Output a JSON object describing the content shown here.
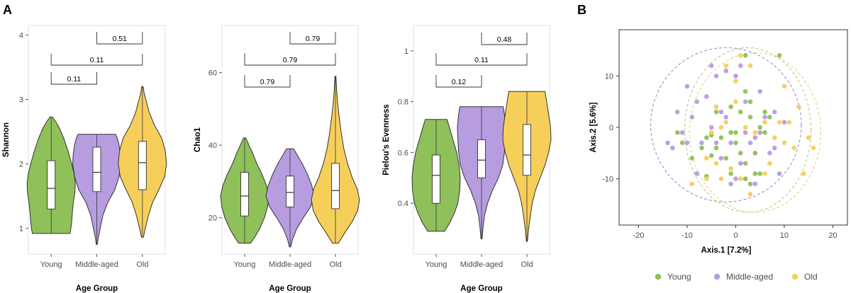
{
  "panel_labels": [
    "A",
    "B"
  ],
  "colors": {
    "young": "#8fc05a",
    "middle": "#b79ce0",
    "old": "#f6cf5a",
    "ellipse_purple": "#9b8fce",
    "ellipse_green": "#b8c98a",
    "ellipse_yellow": "#eed07a"
  },
  "chart_data": [
    {
      "type": "violin",
      "categories": [
        "Young",
        "Middle-aged",
        "Old"
      ],
      "xlabel": "Age Group",
      "ylabel": "Shannon",
      "ylim": [
        0.6,
        4.15
      ],
      "yticks": [
        1,
        2,
        3,
        4
      ],
      "violins": [
        {
          "name": "Young",
          "min": 0.92,
          "max": 2.73,
          "q1": 1.3,
          "median": 1.62,
          "q3": 2.05,
          "density": [
            [
              0.92,
              0.78
            ],
            [
              1.0,
              0.82
            ],
            [
              1.1,
              0.85
            ],
            [
              1.25,
              0.88
            ],
            [
              1.4,
              0.92
            ],
            [
              1.55,
              0.98
            ],
            [
              1.7,
              1.0
            ],
            [
              1.85,
              0.95
            ],
            [
              2.0,
              0.85
            ],
            [
              2.2,
              0.7
            ],
            [
              2.4,
              0.52
            ],
            [
              2.55,
              0.35
            ],
            [
              2.65,
              0.2
            ],
            [
              2.73,
              0.05
            ]
          ]
        },
        {
          "name": "Middle-aged",
          "min": 0.75,
          "max": 2.46,
          "q1": 1.57,
          "median": 1.87,
          "q3": 2.26,
          "density": [
            [
              0.75,
              0.02
            ],
            [
              0.85,
              0.06
            ],
            [
              1.0,
              0.14
            ],
            [
              1.2,
              0.25
            ],
            [
              1.4,
              0.45
            ],
            [
              1.6,
              0.75
            ],
            [
              1.8,
              0.92
            ],
            [
              2.0,
              1.0
            ],
            [
              2.15,
              0.98
            ],
            [
              2.3,
              0.92
            ],
            [
              2.4,
              0.85
            ],
            [
              2.46,
              0.78
            ]
          ]
        },
        {
          "name": "Old",
          "min": 0.86,
          "max": 3.2,
          "q1": 1.6,
          "median": 2.02,
          "q3": 2.35,
          "density": [
            [
              0.86,
              0.04
            ],
            [
              1.0,
              0.12
            ],
            [
              1.2,
              0.25
            ],
            [
              1.4,
              0.42
            ],
            [
              1.6,
              0.68
            ],
            [
              1.8,
              0.92
            ],
            [
              2.0,
              1.0
            ],
            [
              2.2,
              0.95
            ],
            [
              2.4,
              0.8
            ],
            [
              2.6,
              0.5
            ],
            [
              2.8,
              0.28
            ],
            [
              3.0,
              0.14
            ],
            [
              3.1,
              0.07
            ],
            [
              3.2,
              0.03
            ]
          ]
        }
      ],
      "comparisons": [
        {
          "from": "Young",
          "to": "Middle-aged",
          "p": "0.11"
        },
        {
          "from": "Young",
          "to": "Old",
          "p": "0.11"
        },
        {
          "from": "Middle-aged",
          "to": "Old",
          "p": "0.51"
        }
      ]
    },
    {
      "type": "violin",
      "categories": [
        "Young",
        "Middle-aged",
        "Old"
      ],
      "xlabel": "Age Group",
      "ylabel": "Chao1",
      "ylim": [
        10,
        73
      ],
      "yticks": [
        20,
        40,
        60
      ],
      "violins": [
        {
          "name": "Young",
          "min": 13,
          "max": 42,
          "q1": 20.5,
          "median": 26,
          "q3": 32.5,
          "density": [
            [
              13,
              0.25
            ],
            [
              15,
              0.45
            ],
            [
              17,
              0.62
            ],
            [
              20,
              0.82
            ],
            [
              23,
              0.95
            ],
            [
              26,
              1.0
            ],
            [
              29,
              0.9
            ],
            [
              32,
              0.72
            ],
            [
              35,
              0.5
            ],
            [
              38,
              0.32
            ],
            [
              40,
              0.18
            ],
            [
              42,
              0.05
            ]
          ]
        },
        {
          "name": "Middle-aged",
          "min": 12,
          "max": 39,
          "q1": 23,
          "median": 27,
          "q3": 31.5,
          "density": [
            [
              12,
              0.03
            ],
            [
              14,
              0.1
            ],
            [
              17,
              0.28
            ],
            [
              20,
              0.55
            ],
            [
              23,
              0.85
            ],
            [
              26,
              1.0
            ],
            [
              29,
              0.9
            ],
            [
              32,
              0.72
            ],
            [
              35,
              0.5
            ],
            [
              37,
              0.32
            ],
            [
              39,
              0.15
            ]
          ]
        },
        {
          "name": "Old",
          "min": 13,
          "max": 59,
          "q1": 22.5,
          "median": 27.5,
          "q3": 35,
          "density": [
            [
              13,
              0.12
            ],
            [
              16,
              0.4
            ],
            [
              19,
              0.7
            ],
            [
              22,
              0.92
            ],
            [
              25,
              1.0
            ],
            [
              28,
              0.9
            ],
            [
              31,
              0.7
            ],
            [
              35,
              0.5
            ],
            [
              39,
              0.35
            ],
            [
              43,
              0.25
            ],
            [
              47,
              0.17
            ],
            [
              51,
              0.1
            ],
            [
              55,
              0.05
            ],
            [
              59,
              0.02
            ]
          ]
        }
      ],
      "comparisons": [
        {
          "from": "Young",
          "to": "Middle-aged",
          "p": "0.79"
        },
        {
          "from": "Young",
          "to": "Old",
          "p": "0.79"
        },
        {
          "from": "Middle-aged",
          "to": "Old",
          "p": "0.79"
        }
      ]
    },
    {
      "type": "violin",
      "categories": [
        "Young",
        "Middle-aged",
        "Old"
      ],
      "xlabel": "Age Group",
      "ylabel": "Pielou's Evenness",
      "ylim": [
        0.2,
        1.1
      ],
      "yticks": [
        0.4,
        0.6,
        0.8,
        1.0
      ],
      "violins": [
        {
          "name": "Young",
          "min": 0.29,
          "max": 0.73,
          "q1": 0.4,
          "median": 0.51,
          "q3": 0.59,
          "density": [
            [
              0.29,
              0.35
            ],
            [
              0.32,
              0.55
            ],
            [
              0.36,
              0.75
            ],
            [
              0.4,
              0.9
            ],
            [
              0.45,
              0.98
            ],
            [
              0.5,
              1.0
            ],
            [
              0.55,
              0.95
            ],
            [
              0.6,
              0.85
            ],
            [
              0.65,
              0.7
            ],
            [
              0.7,
              0.55
            ],
            [
              0.73,
              0.45
            ]
          ]
        },
        {
          "name": "Middle-aged",
          "min": 0.26,
          "max": 0.78,
          "q1": 0.5,
          "median": 0.57,
          "q3": 0.65,
          "density": [
            [
              0.26,
              0.02
            ],
            [
              0.3,
              0.06
            ],
            [
              0.35,
              0.12
            ],
            [
              0.4,
              0.25
            ],
            [
              0.45,
              0.45
            ],
            [
              0.5,
              0.7
            ],
            [
              0.55,
              0.88
            ],
            [
              0.6,
              0.95
            ],
            [
              0.65,
              0.98
            ],
            [
              0.7,
              1.0
            ],
            [
              0.75,
              0.95
            ],
            [
              0.78,
              0.9
            ]
          ]
        },
        {
          "name": "Old",
          "min": 0.25,
          "max": 0.84,
          "q1": 0.51,
          "median": 0.59,
          "q3": 0.71,
          "density": [
            [
              0.25,
              0.02
            ],
            [
              0.3,
              0.07
            ],
            [
              0.35,
              0.14
            ],
            [
              0.4,
              0.22
            ],
            [
              0.45,
              0.35
            ],
            [
              0.5,
              0.55
            ],
            [
              0.55,
              0.75
            ],
            [
              0.6,
              0.9
            ],
            [
              0.65,
              1.0
            ],
            [
              0.7,
              0.98
            ],
            [
              0.75,
              0.9
            ],
            [
              0.8,
              0.82
            ],
            [
              0.84,
              0.75
            ]
          ]
        }
      ],
      "comparisons": [
        {
          "from": "Young",
          "to": "Middle-aged",
          "p": "0.12"
        },
        {
          "from": "Young",
          "to": "Old",
          "p": "0.11"
        },
        {
          "from": "Middle-aged",
          "to": "Old",
          "p": "0.48"
        }
      ]
    },
    {
      "type": "scatter",
      "xlabel": "Axis.1   [7.2%]",
      "ylabel": "Axis.2   [5.6%]",
      "xlim": [
        -24,
        23
      ],
      "ylim": [
        -19,
        19
      ],
      "xticks": [
        -20,
        -10,
        0,
        10,
        20
      ],
      "yticks": [
        -10,
        0,
        10
      ],
      "legend_position": "bottom",
      "series": [
        {
          "name": "Young",
          "points": [
            [
              2,
              14
            ],
            [
              9,
              14
            ],
            [
              -5,
              -1.5
            ],
            [
              -6,
              -9.5
            ],
            [
              -7,
              -4
            ],
            [
              -3,
              -2
            ],
            [
              -4,
              -4
            ],
            [
              -2,
              -6
            ],
            [
              0,
              -3
            ],
            [
              1,
              -5
            ],
            [
              2,
              -7
            ],
            [
              4,
              -5
            ],
            [
              5,
              -9
            ],
            [
              3,
              -11
            ],
            [
              -4,
              3
            ],
            [
              -1,
              4
            ],
            [
              1,
              3
            ],
            [
              3,
              2
            ],
            [
              5,
              0
            ],
            [
              6,
              -1
            ],
            [
              7,
              2
            ],
            [
              0,
              -1
            ],
            [
              -12,
              -1
            ],
            [
              -11,
              -3
            ],
            [
              -5,
              -5.5
            ],
            [
              4,
              -9
            ],
            [
              2,
              7
            ],
            [
              -6,
              -2
            ],
            [
              -1,
              -1
            ],
            [
              3,
              5
            ],
            [
              2,
              -10
            ],
            [
              -1,
              -9
            ],
            [
              -9,
              -6
            ],
            [
              6,
              3
            ]
          ]
        },
        {
          "name": "Middle-aged",
          "points": [
            [
              -10,
              8
            ],
            [
              -12,
              3
            ],
            [
              -14,
              -3
            ],
            [
              -13,
              -4
            ],
            [
              -11,
              -1
            ],
            [
              -9,
              2
            ],
            [
              -8,
              5
            ],
            [
              -5,
              12
            ],
            [
              -2,
              11
            ],
            [
              -4,
              10
            ],
            [
              -6,
              6
            ],
            [
              -7,
              -3
            ],
            [
              -5,
              0
            ],
            [
              -3,
              -6
            ],
            [
              0,
              -10
            ],
            [
              1,
              -7
            ],
            [
              3,
              -3
            ],
            [
              4,
              -2
            ],
            [
              5,
              -1
            ],
            [
              6,
              2
            ],
            [
              7,
              -5
            ],
            [
              8,
              3
            ],
            [
              2,
              5
            ],
            [
              0,
              10
            ],
            [
              1,
              12
            ],
            [
              -1,
              -3
            ],
            [
              -3,
              3
            ],
            [
              -1,
              -11
            ],
            [
              4,
              -11
            ],
            [
              9,
              -9
            ],
            [
              5,
              7
            ],
            [
              8,
              -4
            ],
            [
              -10,
              -3
            ],
            [
              -2,
              2
            ],
            [
              -4,
              -3
            ],
            [
              10,
              1
            ],
            [
              -8,
              -9
            ],
            [
              2,
              -1
            ]
          ]
        },
        {
          "name": "Old",
          "points": [
            [
              -2,
              12
            ],
            [
              0,
              9
            ],
            [
              1,
              14
            ],
            [
              3,
              12
            ],
            [
              10,
              8
            ],
            [
              -4,
              4
            ],
            [
              -2,
              1
            ],
            [
              0,
              5
            ],
            [
              2,
              0
            ],
            [
              4,
              -1
            ],
            [
              6,
              1
            ],
            [
              8,
              -2
            ],
            [
              13,
              4
            ],
            [
              15,
              -2
            ],
            [
              16,
              -4
            ],
            [
              14,
              -9
            ],
            [
              12,
              -4
            ],
            [
              9,
              1
            ],
            [
              10,
              -3
            ],
            [
              -6,
              -6
            ],
            [
              -3,
              -10
            ],
            [
              -1,
              -8
            ],
            [
              1,
              -10
            ],
            [
              3,
              -13
            ],
            [
              -6,
              -10
            ],
            [
              -5,
              -1
            ],
            [
              -3,
              0
            ],
            [
              7,
              -7
            ],
            [
              6,
              -9
            ],
            [
              11,
              1
            ],
            [
              -9,
              -11
            ],
            [
              -4,
              -7
            ]
          ]
        }
      ],
      "ellipses": [
        {
          "group": "Middle-aged",
          "cx": -2.0,
          "cy": 0.5,
          "rx": 15.5,
          "ry": 15.0
        },
        {
          "group": "Young",
          "cx": 2.5,
          "cy": -0.5,
          "rx": 13.0,
          "ry": 16.0
        },
        {
          "group": "Old",
          "cx": 4.0,
          "cy": -1.0,
          "rx": 13.5,
          "ry": 15.5
        }
      ]
    }
  ]
}
